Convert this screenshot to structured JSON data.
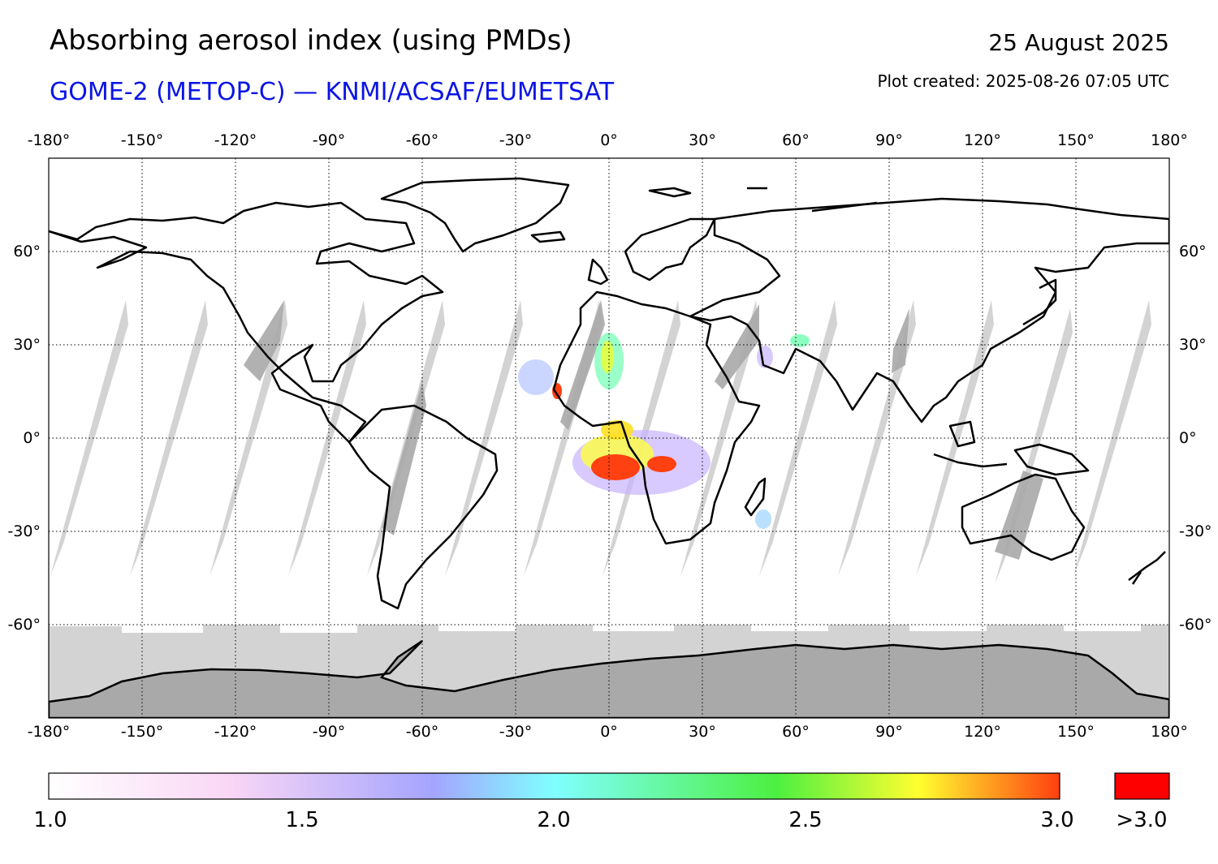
{
  "header": {
    "title": "Absorbing aerosol index (using PMDs)",
    "subtitle": "GOME-2 (METOP-C) — KNMI/ACSAF/EUMETSAT",
    "date": "25 August 2025",
    "created": "Plot created: 2025-08-26 07:05 UTC"
  },
  "colors": {
    "subtitle": "#0a14e6",
    "no_data_gap": "#d3d3d3",
    "no_data_dark": "#a9a9a9",
    "overflow": "#ff0000"
  },
  "map": {
    "projection": "equirectangular",
    "lon_range": [
      -180,
      180
    ],
    "lat_range": [
      -90,
      90
    ],
    "lon_ticks": [
      "-180°",
      "-150°",
      "-120°",
      "-90°",
      "-60°",
      "-30°",
      "0°",
      "30°",
      "60°",
      "90°",
      "120°",
      "150°",
      "180°"
    ],
    "lat_ticks": [
      "60°",
      "30°",
      "0°",
      "-30°",
      "-60°"
    ],
    "grid": "dotted"
  },
  "colorbar": {
    "labels": [
      "1.0",
      "1.5",
      "2.0",
      "2.5",
      "3.0"
    ],
    "overflow_label": ">3.0",
    "stops": [
      "#ffffff",
      "#f9d6f5",
      "#a4a4ff",
      "#80ffff",
      "#4cf040",
      "#ffff30",
      "#ff4010"
    ]
  }
}
